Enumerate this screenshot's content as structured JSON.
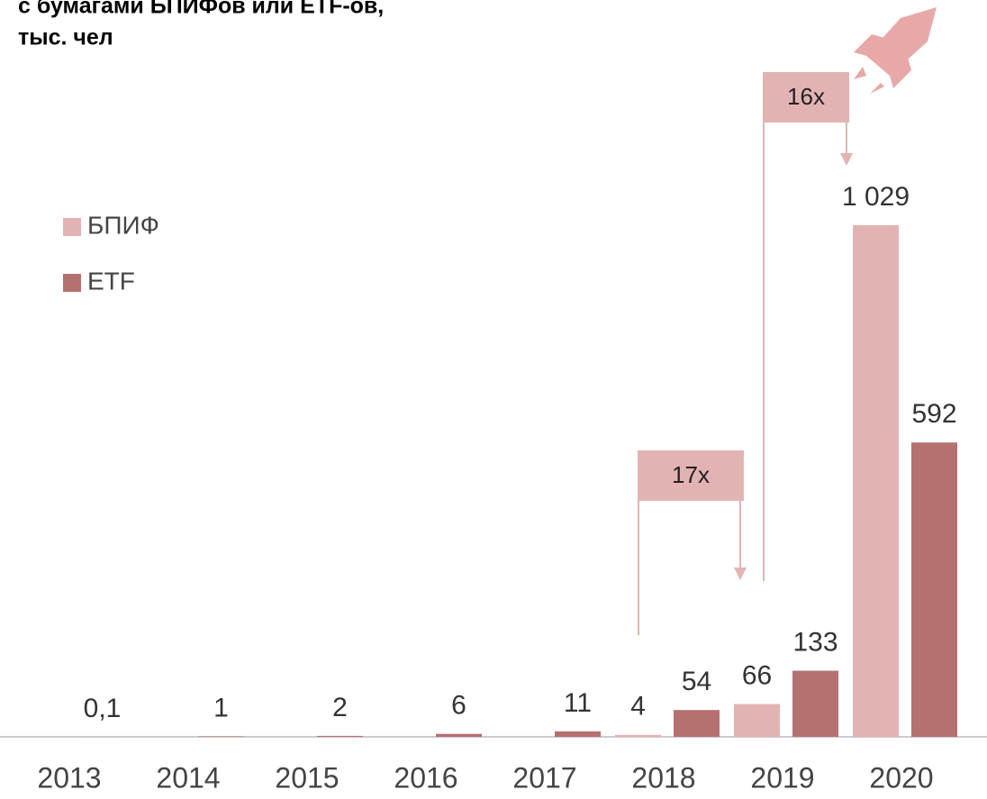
{
  "chart_data": {
    "type": "bar",
    "title": [
      "с бумагами БПИФов или ETF-ов,",
      "тыс. чел"
    ],
    "categories": [
      "2013",
      "2014",
      "2015",
      "2016",
      "2017",
      "2018",
      "2019",
      "2020"
    ],
    "series": [
      {
        "name": "БПИФ",
        "color": "#e3b3b4",
        "values": [
          null,
          null,
          null,
          null,
          null,
          4,
          66,
          1029
        ],
        "value_labels": [
          null,
          null,
          null,
          null,
          null,
          "4",
          "66",
          "1 029"
        ]
      },
      {
        "name": "ETF",
        "color": "#b57170",
        "values": [
          0.1,
          1,
          2,
          6,
          11,
          54,
          133,
          592
        ],
        "value_labels": [
          "0,1",
          "1",
          "2",
          "6",
          "11",
          "54",
          "133",
          "592"
        ]
      }
    ],
    "annotations": [
      "17x",
      "16x"
    ]
  }
}
